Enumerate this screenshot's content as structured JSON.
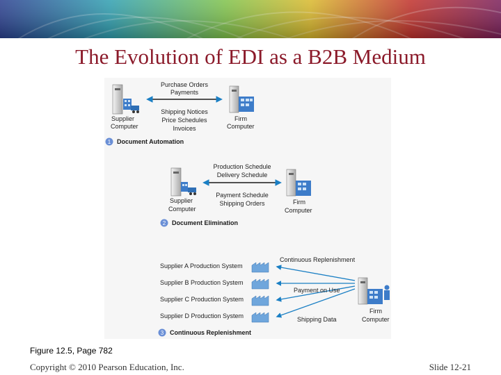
{
  "title": "The Evolution of EDI as a B2B Medium",
  "colors": {
    "title": "#8b1a2a",
    "arrow": "#1a7fc4",
    "section_badge": "#6a8fd6"
  },
  "figure": {
    "stage1": {
      "left_node": {
        "icon": "supplier-computer-icon",
        "label_line1": "Supplier",
        "label_line2": "Computer"
      },
      "right_node": {
        "icon": "firm-computer-icon",
        "label_line1": "Firm",
        "label_line2": "Computer"
      },
      "to_right": [
        "Purchase Orders",
        "Payments"
      ],
      "to_left": [
        "Shipping Notices",
        "Price Schedules",
        "Invoices"
      ],
      "number": "1",
      "caption": "Document Automation"
    },
    "stage2": {
      "left_node": {
        "icon": "supplier-computer-icon",
        "label_line1": "Supplier",
        "label_line2": "Computer"
      },
      "right_node": {
        "icon": "firm-computer-icon",
        "label_line1": "Firm",
        "label_line2": "Computer"
      },
      "to_left": [
        "Production Schedule",
        "Delivery Schedule"
      ],
      "to_right": [
        "Payment Schedule",
        "Shipping Orders"
      ],
      "number": "2",
      "caption": "Document Elimination"
    },
    "stage3": {
      "suppliers": [
        "Supplier A Production System",
        "Supplier B Production System",
        "Supplier C Production System",
        "Supplier D Production System"
      ],
      "arrow_labels": [
        "Continuous Replenishment",
        "Payment on Use",
        "Shipping Data"
      ],
      "firm": {
        "icon": "firm-computer-icon",
        "label_line1": "Firm",
        "label_line2": "Computer"
      },
      "number": "3",
      "caption": "Continuous Replenishment"
    }
  },
  "caption": "Figure 12.5, Page 782",
  "footer": {
    "copyright": "Copyright © 2010 Pearson Education, Inc.",
    "slide": "Slide 12-21"
  }
}
